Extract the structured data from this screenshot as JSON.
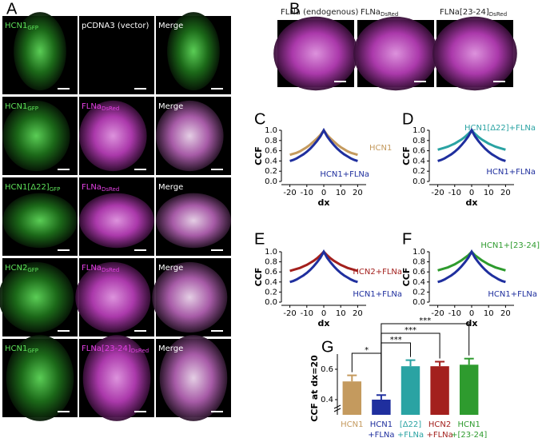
{
  "panel_a": {
    "letter": "A",
    "rows": [
      [
        {
          "text": "HCN1",
          "sub": "GFP"
        },
        {
          "text": "pCDNA3 (vector)"
        },
        {
          "text": "Merge"
        }
      ],
      [
        {
          "text": "HCN1",
          "sub": "GFP"
        },
        {
          "text": "FLNa",
          "sub": "DsRed"
        },
        {
          "text": "Merge"
        }
      ],
      [
        {
          "text": "HCN1[Δ22]",
          "sub": "GFP"
        },
        {
          "text": "FLNa",
          "sub": "DsRed"
        },
        {
          "text": "Merge"
        }
      ],
      [
        {
          "text": "HCN2",
          "sub": "GFP"
        },
        {
          "text": "FLNa",
          "sub": "DsRed"
        },
        {
          "text": "Merge"
        }
      ],
      [
        {
          "text": "HCN1",
          "sub": "GFP"
        },
        {
          "text": "FLNa[23-24]",
          "sub": "DsRed"
        },
        {
          "text": "Merge"
        }
      ]
    ]
  },
  "panel_b": {
    "letter": "B",
    "labels": [
      {
        "text": "FLNa (endogenous)"
      },
      {
        "text": "FLNa",
        "sub": "DsRed"
      },
      {
        "text": "FLNa[23-24]",
        "sub": "DsRed"
      }
    ]
  },
  "chart_data": [
    {
      "type": "line",
      "letter": "C",
      "x_label": "dx",
      "y_label": "CCF",
      "x": [
        -20,
        -18,
        -16,
        -14,
        -12,
        -10,
        -8,
        -6,
        -4,
        -2,
        0,
        2,
        4,
        6,
        8,
        10,
        12,
        14,
        16,
        18,
        20
      ],
      "series": [
        {
          "name": "HCN1",
          "color": "#c49a5e",
          "values": [
            0.52,
            0.54,
            0.56,
            0.59,
            0.63,
            0.67,
            0.72,
            0.78,
            0.84,
            0.91,
            1.0,
            0.91,
            0.84,
            0.78,
            0.72,
            0.67,
            0.63,
            0.59,
            0.56,
            0.54,
            0.52
          ]
        },
        {
          "name": "HCN1+FLNa",
          "color": "#1f2f9e",
          "values": [
            0.4,
            0.42,
            0.45,
            0.49,
            0.53,
            0.58,
            0.64,
            0.71,
            0.79,
            0.88,
            1.0,
            0.88,
            0.79,
            0.71,
            0.64,
            0.58,
            0.53,
            0.49,
            0.45,
            0.42,
            0.4
          ]
        }
      ],
      "xlim": [
        -25,
        25
      ],
      "xticks": [
        -20,
        -10,
        0,
        10,
        20
      ],
      "ylim": [
        0,
        1.0
      ],
      "yticks": [
        {
          "value": 0,
          "label": "0.0"
        },
        0.2,
        0.4,
        0.6,
        0.8,
        {
          "value": 1,
          "label": "1.0"
        }
      ]
    },
    {
      "type": "line",
      "letter": "D",
      "x_label": "dx",
      "y_label": "CCF",
      "x": [
        -20,
        -18,
        -16,
        -14,
        -12,
        -10,
        -8,
        -6,
        -4,
        -2,
        0,
        2,
        4,
        6,
        8,
        10,
        12,
        14,
        16,
        18,
        20
      ],
      "series": [
        {
          "name": "HCN1[Δ22]+FLNa",
          "color": "#2aa3a3",
          "values": [
            0.62,
            0.64,
            0.66,
            0.68,
            0.71,
            0.74,
            0.78,
            0.82,
            0.87,
            0.93,
            1.0,
            0.93,
            0.87,
            0.82,
            0.78,
            0.74,
            0.71,
            0.68,
            0.66,
            0.64,
            0.62
          ]
        },
        {
          "name": "HCN1+FLNa",
          "color": "#1f2f9e",
          "values": [
            0.4,
            0.42,
            0.45,
            0.49,
            0.53,
            0.58,
            0.64,
            0.71,
            0.79,
            0.88,
            1.0,
            0.88,
            0.79,
            0.71,
            0.64,
            0.58,
            0.53,
            0.49,
            0.45,
            0.42,
            0.4
          ]
        }
      ],
      "xlim": [
        -25,
        25
      ],
      "xticks": [
        -20,
        -10,
        0,
        10,
        20
      ],
      "ylim": [
        0,
        1.0
      ],
      "yticks": [
        {
          "value": 0,
          "label": "0.0"
        },
        0.2,
        0.4,
        0.6,
        0.8,
        {
          "value": 1,
          "label": "1.0"
        }
      ]
    },
    {
      "type": "line",
      "letter": "E",
      "x_label": "dx",
      "y_label": "CCF",
      "x": [
        -20,
        -18,
        -16,
        -14,
        -12,
        -10,
        -8,
        -6,
        -4,
        -2,
        0,
        2,
        4,
        6,
        8,
        10,
        12,
        14,
        16,
        18,
        20
      ],
      "series": [
        {
          "name": "HCN2+FLNa",
          "color": "#a3201d",
          "values": [
            0.62,
            0.64,
            0.66,
            0.68,
            0.71,
            0.74,
            0.78,
            0.82,
            0.87,
            0.93,
            1.0,
            0.93,
            0.87,
            0.82,
            0.78,
            0.74,
            0.71,
            0.68,
            0.66,
            0.64,
            0.62
          ]
        },
        {
          "name": "HCN1+FLNa",
          "color": "#1f2f9e",
          "values": [
            0.4,
            0.42,
            0.45,
            0.49,
            0.53,
            0.58,
            0.64,
            0.71,
            0.79,
            0.88,
            1.0,
            0.88,
            0.79,
            0.71,
            0.64,
            0.58,
            0.53,
            0.49,
            0.45,
            0.42,
            0.4
          ]
        }
      ],
      "xlim": [
        -25,
        25
      ],
      "xticks": [
        -20,
        -10,
        0,
        10,
        20
      ],
      "ylim": [
        0,
        1.0
      ],
      "yticks": [
        {
          "value": 0,
          "label": "0.0"
        },
        0.2,
        0.4,
        0.6,
        0.8,
        {
          "value": 1,
          "label": "1.0"
        }
      ]
    },
    {
      "type": "line",
      "letter": "F",
      "x_label": "dx",
      "y_label": "CCF",
      "x": [
        -20,
        -18,
        -16,
        -14,
        -12,
        -10,
        -8,
        -6,
        -4,
        -2,
        0,
        2,
        4,
        6,
        8,
        10,
        12,
        14,
        16,
        18,
        20
      ],
      "series": [
        {
          "name": "HCN1+[23-24]",
          "color": "#2e9b2e",
          "values": [
            0.63,
            0.65,
            0.67,
            0.69,
            0.72,
            0.75,
            0.79,
            0.83,
            0.88,
            0.93,
            1.0,
            0.93,
            0.88,
            0.83,
            0.79,
            0.75,
            0.72,
            0.69,
            0.67,
            0.65,
            0.63
          ]
        },
        {
          "name": "HCN1+FLNa",
          "color": "#1f2f9e",
          "values": [
            0.4,
            0.42,
            0.45,
            0.49,
            0.53,
            0.58,
            0.64,
            0.71,
            0.79,
            0.88,
            1.0,
            0.88,
            0.79,
            0.71,
            0.64,
            0.58,
            0.53,
            0.49,
            0.45,
            0.42,
            0.4
          ]
        }
      ],
      "xlim": [
        -25,
        25
      ],
      "xticks": [
        -20,
        -10,
        0,
        10,
        20
      ],
      "ylim": [
        0,
        1.0
      ],
      "yticks": [
        {
          "value": 0,
          "label": "0.0"
        },
        0.2,
        0.4,
        0.6,
        0.8,
        {
          "value": 1,
          "label": "1.0"
        }
      ]
    },
    {
      "type": "bar",
      "letter": "G",
      "y_label": "CCF at dx=20",
      "categories": [
        [
          "HCN1"
        ],
        [
          "HCN1",
          "+FLNa"
        ],
        [
          "[Δ22]",
          "+FLNa"
        ],
        [
          "HCN2",
          "+FLNa"
        ],
        [
          "HCN1",
          "+[23-24]"
        ]
      ],
      "values": [
        0.52,
        0.4,
        0.62,
        0.62,
        0.63
      ],
      "errors": [
        0.04,
        0.03,
        0.04,
        0.03,
        0.04
      ],
      "colors": [
        "#c49a5e",
        "#1f2f9e",
        "#2aa3a3",
        "#a3201d",
        "#2e9b2e"
      ],
      "ylim": [
        0.3,
        0.7
      ],
      "yticks": [
        0.4,
        0.6
      ],
      "significance": [
        {
          "from": 0,
          "to": 1,
          "text": "*"
        },
        {
          "from": 1,
          "to": 2,
          "text": "***"
        },
        {
          "from": 1,
          "to": 3,
          "text": "***"
        },
        {
          "from": 1,
          "to": 4,
          "text": "***"
        }
      ]
    }
  ]
}
